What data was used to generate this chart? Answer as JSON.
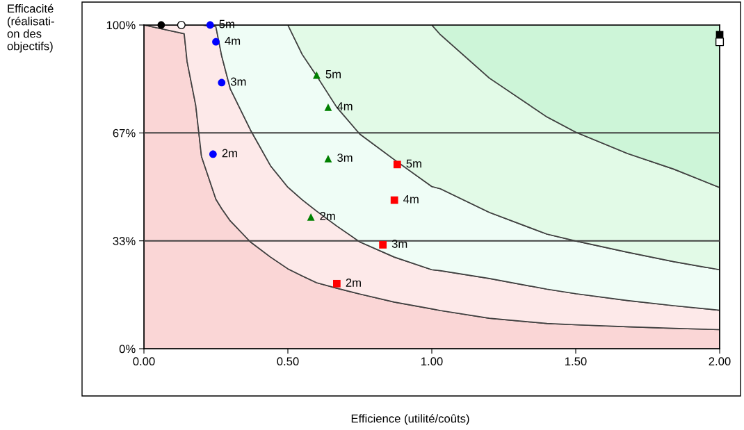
{
  "chart_data": {
    "type": "area",
    "stacked": true,
    "xlabel": "Efficience (utilité/coûts)",
    "ylabel": "Efficacité\n(réalisati-\non des\nobjectifs)",
    "xlim": [
      0,
      2
    ],
    "xticks": [
      {
        "value": 0,
        "label": "0.00"
      },
      {
        "value": 0.5,
        "label": "0.50"
      },
      {
        "value": 1,
        "label": "1.00"
      },
      {
        "value": 1.5,
        "label": "1.50"
      },
      {
        "value": 2,
        "label": "2.00"
      }
    ],
    "ylim": [
      0,
      100
    ],
    "yticks": [
      {
        "value": 0,
        "label": "0%"
      },
      {
        "value": 33.33,
        "label": "33%"
      },
      {
        "value": 66.67,
        "label": "67%"
      },
      {
        "value": 100,
        "label": "100%"
      }
    ],
    "grid": false,
    "legend": false,
    "annotations": [
      {
        "text": "5m",
        "x": 0.23,
        "y": 100
      },
      {
        "text": "4m",
        "x": 0.25,
        "y": 94.8
      },
      {
        "text": "3m",
        "x": 0.27,
        "y": 82.2
      },
      {
        "text": "2m",
        "x": 0.24,
        "y": 60.1
      },
      {
        "text": "5m",
        "x": 0.6,
        "y": 84.5
      },
      {
        "text": "4m",
        "x": 0.64,
        "y": 74.6
      },
      {
        "text": "3m",
        "x": 0.64,
        "y": 58.7
      },
      {
        "text": "2m",
        "x": 0.58,
        "y": 40.7
      },
      {
        "text": "5m",
        "x": 0.88,
        "y": 56.9
      },
      {
        "text": "4m",
        "x": 0.87,
        "y": 45.9
      },
      {
        "text": "3m",
        "x": 0.83,
        "y": 32.1
      },
      {
        "text": "2m",
        "x": 0.67,
        "y": 20.1
      }
    ],
    "ref_lines": [
      {
        "axis": "y",
        "value": 33.33,
        "color": "#404040"
      },
      {
        "axis": "y",
        "value": 66.67,
        "color": "#404040"
      }
    ],
    "x": [
      0,
      0.14,
      0.15,
      0.18,
      0.2,
      0.25,
      0.27,
      0.3,
      0.37,
      0.44,
      0.5,
      0.55,
      0.6,
      0.67,
      0.75,
      0.87,
      1.0,
      1.03,
      1.2,
      1.4,
      1.5,
      1.68,
      1.84,
      2.0
    ],
    "series": [
      {
        "color": "#fad6d6",
        "values": [
          100,
          97.3,
          88.7,
          75.2,
          59.4,
          46.2,
          43.3,
          39.5,
          33.0,
          28.3,
          24.7,
          22.5,
          20.4,
          18.7,
          16.9,
          14.4,
          12.3,
          11.8,
          9.4,
          7.8,
          7.4,
          6.8,
          6.3,
          5.9
        ]
      },
      {
        "color": "#fde9e9",
        "values": [
          0,
          2.7,
          11.3,
          24.8,
          40.6,
          53.3,
          47.2,
          40.8,
          34.6,
          28.2,
          25.2,
          23.5,
          22.1,
          19.2,
          16.1,
          13.9,
          12.1,
          12.3,
          12.3,
          10.6,
          9.6,
          8.1,
          7.0,
          6.0
        ]
      },
      {
        "color": "#effdf6",
        "values": [
          0,
          0,
          0,
          0,
          0,
          0.5,
          9.5,
          19.7,
          32.4,
          43.5,
          50.1,
          44.9,
          41.8,
          36.7,
          33.3,
          30.1,
          25.7,
          25.3,
          20.4,
          17.0,
          16.3,
          14.9,
          13.6,
          12.5
        ]
      },
      {
        "color": "#e2fae7",
        "values": [
          0,
          0,
          0,
          0,
          0,
          0,
          0,
          0,
          0,
          0,
          0,
          9.1,
          15.7,
          25.4,
          33.7,
          41.6,
          49.9,
          47.6,
          41.5,
          36.2,
          33.6,
          30.5,
          28.6,
          25.4
        ]
      },
      {
        "color": "#cdf5d8",
        "values": [
          0,
          0,
          0,
          0,
          0,
          0,
          0,
          0,
          0,
          0,
          0,
          0,
          0,
          0,
          0,
          0,
          0,
          3.0,
          16.4,
          28.4,
          33.1,
          39.7,
          44.5,
          50.2
        ]
      },
      {
        "type": "scatter",
        "marker": "circle",
        "color": "#000000",
        "x": [
          0.06
        ],
        "values": [
          100
        ]
      },
      {
        "type": "scatter",
        "marker": "circle",
        "color": "#ffffff",
        "x": [
          0.13
        ],
        "values": [
          100
        ]
      },
      {
        "type": "scatter",
        "marker": "circle",
        "color": "#0000ff",
        "x": [
          0.23,
          0.25,
          0.27,
          0.24
        ],
        "values": [
          100,
          94.8,
          82.2,
          60.1
        ]
      },
      {
        "type": "scatter",
        "marker": "triangle",
        "color": "#008000",
        "x": [
          0.6,
          0.64,
          0.64,
          0.58
        ],
        "values": [
          84.5,
          74.6,
          58.7,
          40.7
        ]
      },
      {
        "type": "scatter",
        "marker": "square",
        "color": "#ff0000",
        "x": [
          0.88,
          0.87,
          0.83,
          0.67
        ],
        "values": [
          56.9,
          45.9,
          32.1,
          20.1
        ]
      },
      {
        "type": "scatter",
        "marker": "square",
        "color": "#000000",
        "x": [
          2.0
        ],
        "values": [
          97.0
        ]
      },
      {
        "type": "scatter",
        "marker": "square",
        "color": "#ffffff",
        "x": [
          2.0
        ],
        "values": [
          94.8
        ]
      }
    ]
  }
}
